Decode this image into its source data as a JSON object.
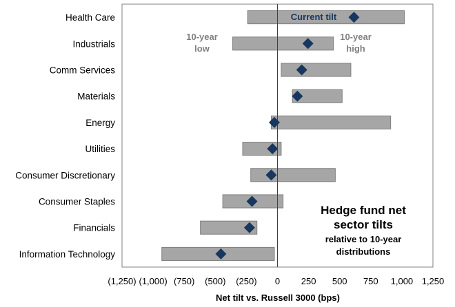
{
  "chart_data": {
    "type": "range-bar",
    "orientation": "horizontal",
    "xlabel": "Net tilt vs. Russell 3000 (bps)",
    "xlim": [
      -1250,
      1250
    ],
    "xticks": [
      -1250,
      -1000,
      -750,
      -500,
      -250,
      0,
      250,
      500,
      750,
      1000,
      1250
    ],
    "xtick_labels": [
      "(1,250)",
      "(1,000)",
      "(750)",
      "(500)",
      "(250)",
      "0",
      "250",
      "500",
      "750",
      "1,000",
      "1,250"
    ],
    "categories": [
      "Health Care",
      "Industrials",
      "Comm Services",
      "Materials",
      "Energy",
      "Utilities",
      "Consumer Discretionary",
      "Consumer Staples",
      "Financials",
      "Information Technology"
    ],
    "low": [
      -240,
      -360,
      30,
      120,
      -50,
      -280,
      -215,
      -440,
      -620,
      -930
    ],
    "high": [
      1020,
      450,
      590,
      520,
      910,
      30,
      465,
      45,
      -165,
      -25
    ],
    "current": [
      615,
      245,
      195,
      160,
      -25,
      -40,
      -50,
      -205,
      -225,
      -455
    ],
    "annotations": {
      "current_tilt": "Current tilt",
      "low_line1": "10-year",
      "low_line2": "low",
      "high_line1": "10-year",
      "high_line2": "high"
    },
    "title_lines": [
      "Hedge fund net",
      "sector tilts"
    ],
    "subtitle_lines": [
      "relative to 10-year",
      "distributions"
    ],
    "colors": {
      "bar": "#a6a6a6",
      "bar_border": "#7f7f7f",
      "marker": "#17375e",
      "zero_line": "#404040",
      "frame": "#808080",
      "annotation_gray": "#7f7f7f",
      "annotation_blue": "#17375e"
    }
  }
}
